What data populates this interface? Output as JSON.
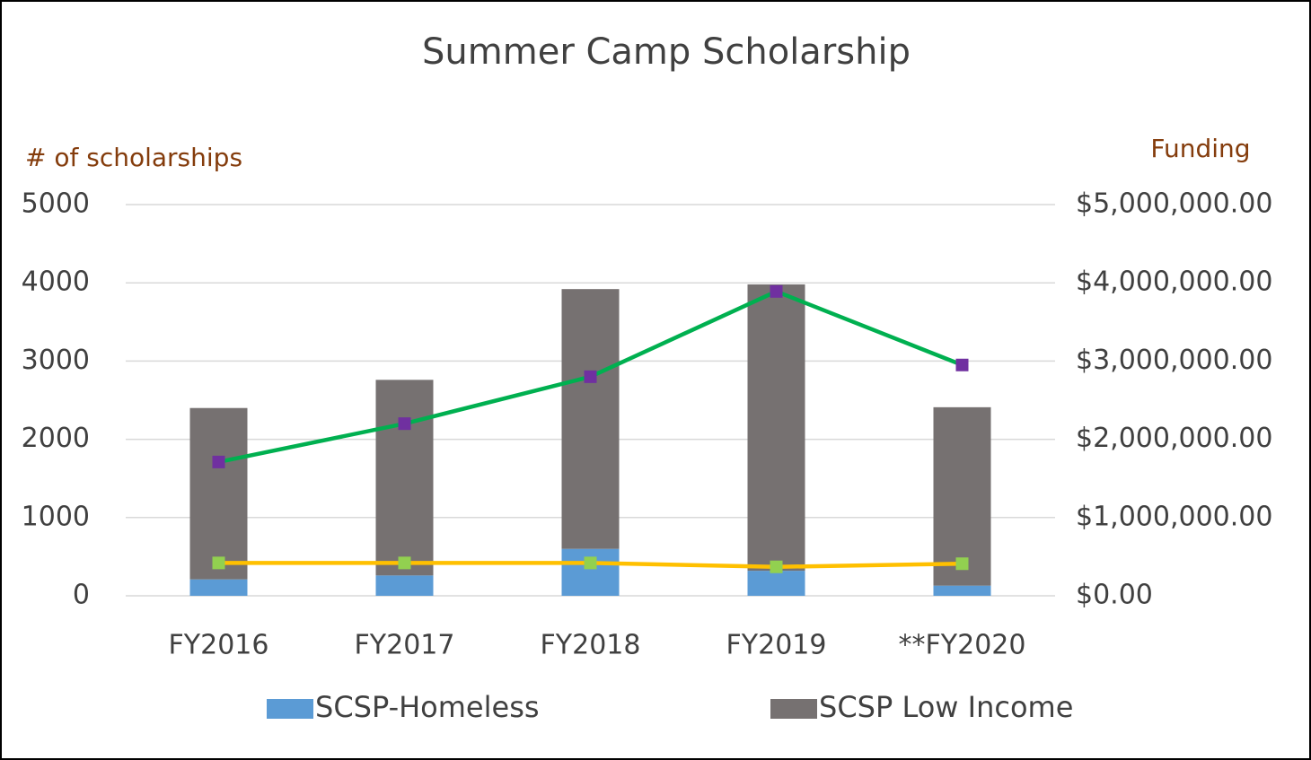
{
  "chart_data": {
    "type": "bar",
    "title": "Summer Camp Scholarship",
    "y_label": "# of scholarships",
    "y2_label": "Funding",
    "categories": [
      "FY2016",
      "FY2017",
      "FY2018",
      "FY2019",
      "**FY2020"
    ],
    "series": [
      {
        "name": "SCSP-Homeless",
        "color": "#5b9bd5",
        "values": [
          210,
          260,
          600,
          320,
          130
        ]
      },
      {
        "name": "SCSP Low Income",
        "color": "#767171",
        "values": [
          2190,
          2500,
          3320,
          3660,
          2280
        ]
      },
      {
        "type": "line",
        "axis": "y2",
        "color": "#00b050",
        "marker_color": "#7030a0",
        "values": [
          1710000,
          2200000,
          2800000,
          3890000,
          2950000
        ]
      },
      {
        "type": "line",
        "axis": "y2",
        "color": "#ffc000",
        "marker_color": "#92d050",
        "values": [
          420000,
          420000,
          420000,
          370000,
          410000
        ]
      }
    ],
    "stacked": true,
    "ylim": [
      0,
      5000
    ],
    "yticks": [
      0,
      1000,
      2000,
      3000,
      4000,
      5000
    ],
    "y2lim": [
      0,
      5000000
    ],
    "y2ticks": [
      {
        "value": 0,
        "label": "$0.00"
      },
      {
        "value": 1000000,
        "label": "$1,000,000.00"
      },
      {
        "value": 2000000,
        "label": "$2,000,000.00"
      },
      {
        "value": 3000000,
        "label": "$3,000,000.00"
      },
      {
        "value": 4000000,
        "label": "$4,000,000.00"
      },
      {
        "value": 5000000,
        "label": "$5,000,000.00"
      }
    ],
    "grid": true,
    "legend": "bottom"
  }
}
